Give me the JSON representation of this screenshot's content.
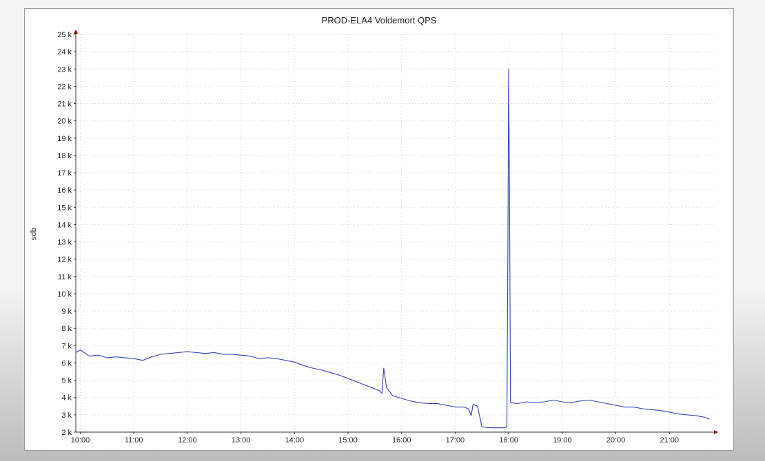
{
  "chart_data": {
    "type": "line",
    "title": "PROD-ELA4 Voldemort QPS",
    "ylabel": "qps",
    "xlabel": "",
    "ylim": [
      2000,
      25000
    ],
    "xlim": [
      "09:55",
      "21:50"
    ],
    "grid": true,
    "legend": "none",
    "y_ticks": [
      {
        "value": 2000,
        "label": "2 k"
      },
      {
        "value": 3000,
        "label": "3 k"
      },
      {
        "value": 4000,
        "label": "4 k"
      },
      {
        "value": 5000,
        "label": "5 k"
      },
      {
        "value": 6000,
        "label": "6 k"
      },
      {
        "value": 7000,
        "label": "7 k"
      },
      {
        "value": 8000,
        "label": "8 k"
      },
      {
        "value": 9000,
        "label": "9 k"
      },
      {
        "value": 10000,
        "label": "10 k"
      },
      {
        "value": 11000,
        "label": "11 k"
      },
      {
        "value": 12000,
        "label": "12 k"
      },
      {
        "value": 13000,
        "label": "13 k"
      },
      {
        "value": 14000,
        "label": "14 k"
      },
      {
        "value": 15000,
        "label": "15 k"
      },
      {
        "value": 16000,
        "label": "16 k"
      },
      {
        "value": 17000,
        "label": "17 k"
      },
      {
        "value": 18000,
        "label": "18 k"
      },
      {
        "value": 19000,
        "label": "19 k"
      },
      {
        "value": 20000,
        "label": "20 k"
      },
      {
        "value": 21000,
        "label": "21 k"
      },
      {
        "value": 22000,
        "label": "22 k"
      },
      {
        "value": 23000,
        "label": "23 k"
      },
      {
        "value": 24000,
        "label": "24 k"
      },
      {
        "value": 25000,
        "label": "25 k"
      }
    ],
    "x_ticks": [
      "10:00",
      "11:00",
      "12:00",
      "13:00",
      "14:00",
      "15:00",
      "16:00",
      "17:00",
      "18:00",
      "19:00",
      "20:00",
      "21:00"
    ],
    "series": [
      {
        "color": "#3344bb",
        "points": [
          [
            "09:55",
            6600
          ],
          [
            "10:00",
            6750
          ],
          [
            "10:10",
            6400
          ],
          [
            "10:20",
            6450
          ],
          [
            "10:30",
            6300
          ],
          [
            "10:40",
            6350
          ],
          [
            "10:50",
            6300
          ],
          [
            "11:00",
            6250
          ],
          [
            "11:10",
            6150
          ],
          [
            "11:20",
            6350
          ],
          [
            "11:30",
            6500
          ],
          [
            "11:40",
            6550
          ],
          [
            "11:50",
            6600
          ],
          [
            "12:00",
            6650
          ],
          [
            "12:10",
            6600
          ],
          [
            "12:20",
            6550
          ],
          [
            "12:30",
            6600
          ],
          [
            "12:40",
            6500
          ],
          [
            "12:50",
            6500
          ],
          [
            "13:00",
            6450
          ],
          [
            "13:10",
            6400
          ],
          [
            "13:20",
            6250
          ],
          [
            "13:30",
            6300
          ],
          [
            "13:40",
            6250
          ],
          [
            "13:50",
            6150
          ],
          [
            "14:00",
            6050
          ],
          [
            "14:10",
            5850
          ],
          [
            "14:20",
            5700
          ],
          [
            "14:30",
            5600
          ],
          [
            "14:40",
            5450
          ],
          [
            "14:50",
            5300
          ],
          [
            "15:00",
            5100
          ],
          [
            "15:10",
            4900
          ],
          [
            "15:20",
            4700
          ],
          [
            "15:30",
            4500
          ],
          [
            "15:35",
            4400
          ],
          [
            "15:38",
            4250
          ],
          [
            "15:40",
            5700
          ],
          [
            "15:43",
            4600
          ],
          [
            "15:50",
            4100
          ],
          [
            "16:00",
            3950
          ],
          [
            "16:10",
            3800
          ],
          [
            "16:20",
            3700
          ],
          [
            "16:30",
            3650
          ],
          [
            "16:40",
            3650
          ],
          [
            "16:50",
            3550
          ],
          [
            "17:00",
            3450
          ],
          [
            "17:10",
            3450
          ],
          [
            "17:15",
            3350
          ],
          [
            "17:18",
            2950
          ],
          [
            "17:20",
            3600
          ],
          [
            "17:25",
            3500
          ],
          [
            "17:30",
            2300
          ],
          [
            "17:40",
            2250
          ],
          [
            "17:50",
            2250
          ],
          [
            "17:55",
            2250
          ],
          [
            "17:58",
            2300
          ],
          [
            "17:59",
            12000
          ],
          [
            "18:00",
            23000
          ],
          [
            "18:01",
            15000
          ],
          [
            "18:02",
            3700
          ],
          [
            "18:10",
            3650
          ],
          [
            "18:20",
            3750
          ],
          [
            "18:30",
            3700
          ],
          [
            "18:40",
            3750
          ],
          [
            "18:50",
            3850
          ],
          [
            "19:00",
            3750
          ],
          [
            "19:10",
            3700
          ],
          [
            "19:20",
            3800
          ],
          [
            "19:30",
            3850
          ],
          [
            "19:40",
            3750
          ],
          [
            "19:50",
            3650
          ],
          [
            "20:00",
            3550
          ],
          [
            "20:10",
            3450
          ],
          [
            "20:20",
            3450
          ],
          [
            "20:30",
            3350
          ],
          [
            "20:40",
            3300
          ],
          [
            "20:50",
            3250
          ],
          [
            "21:00",
            3150
          ],
          [
            "21:10",
            3050
          ],
          [
            "21:20",
            3000
          ],
          [
            "21:30",
            2950
          ],
          [
            "21:40",
            2850
          ],
          [
            "21:45",
            2750
          ]
        ]
      }
    ]
  }
}
